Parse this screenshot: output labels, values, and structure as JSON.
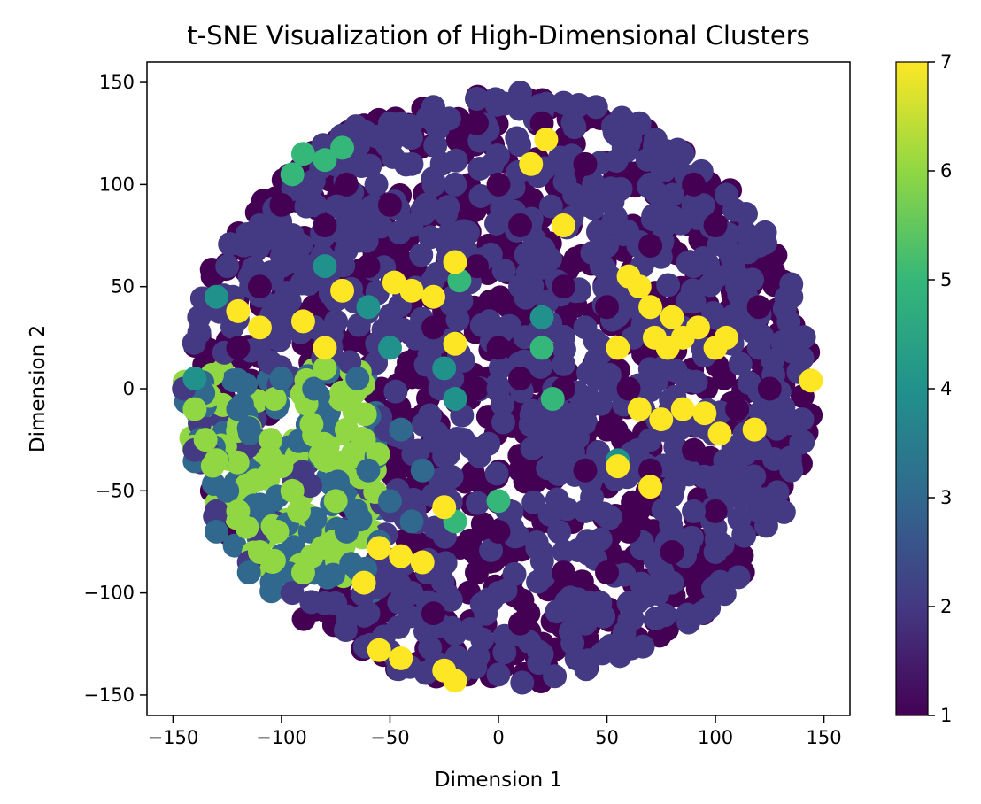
{
  "chart_data": {
    "type": "scatter",
    "title": "t-SNE Visualization of High-Dimensional Clusters",
    "xlabel": "Dimension 1",
    "ylabel": "Dimension 2",
    "xlim": [
      -162,
      162
    ],
    "ylim": [
      -160,
      160
    ],
    "xticks": [
      -150,
      -100,
      -50,
      0,
      50,
      100,
      150
    ],
    "xtick_labels": [
      "−150",
      "−100",
      "−50",
      "0",
      "50",
      "100",
      "150"
    ],
    "yticks": [
      -150,
      -100,
      -50,
      0,
      50,
      100,
      150
    ],
    "ytick_labels": [
      "−150",
      "−100",
      "−50",
      "0",
      "50",
      "100",
      "150"
    ],
    "colormap": "viridis",
    "colorbar": {
      "range": [
        1,
        7
      ],
      "ticks": [
        1,
        2,
        3,
        4,
        5,
        6,
        7
      ],
      "tick_labels": [
        "1",
        "2",
        "3",
        "4",
        "5",
        "6",
        "7"
      ]
    },
    "grid": false,
    "legend": "none",
    "marker_radius_data_units": 5.5,
    "points": [
      {
        "x": 0,
        "y": 0,
        "c": 2
      },
      {
        "x": 10,
        "y": 5,
        "c": 1
      },
      {
        "x": -92,
        "y": -60,
        "c": 6
      },
      {
        "x": -102,
        "y": -70,
        "c": 6
      },
      {
        "x": -86,
        "y": -82,
        "c": 6
      },
      {
        "x": -112,
        "y": -45,
        "c": 6
      },
      {
        "x": -80,
        "y": -35,
        "c": 6
      },
      {
        "x": -70,
        "y": -20,
        "c": 6
      },
      {
        "x": -120,
        "y": -60,
        "c": 6
      },
      {
        "x": -135,
        "y": -25,
        "c": 6
      },
      {
        "x": -130,
        "y": -35,
        "c": 6
      },
      {
        "x": -95,
        "y": -50,
        "c": 6
      },
      {
        "x": -75,
        "y": -55,
        "c": 6
      },
      {
        "x": -105,
        "y": -25,
        "c": 6
      },
      {
        "x": -80,
        "y": 10,
        "c": 6
      },
      {
        "x": -62,
        "y": -25,
        "c": 6
      },
      {
        "x": -90,
        "y": -90,
        "c": 6
      },
      {
        "x": -110,
        "y": -80,
        "c": 6
      },
      {
        "x": -140,
        "y": -10,
        "c": 6
      },
      {
        "x": -100,
        "y": -38,
        "c": 6
      },
      {
        "x": -125,
        "y": -50,
        "c": 3
      },
      {
        "x": -115,
        "y": -90,
        "c": 3
      },
      {
        "x": -130,
        "y": -70,
        "c": 3
      },
      {
        "x": -60,
        "y": -40,
        "c": 3
      },
      {
        "x": -45,
        "y": -20,
        "c": 3
      },
      {
        "x": -50,
        "y": -55,
        "c": 3
      },
      {
        "x": -35,
        "y": -40,
        "c": 3
      },
      {
        "x": -70,
        "y": -70,
        "c": 3
      },
      {
        "x": -85,
        "y": 0,
        "c": 3
      },
      {
        "x": -100,
        "y": 5,
        "c": 3
      },
      {
        "x": -65,
        "y": 5,
        "c": 3
      },
      {
        "x": -55,
        "y": -75,
        "c": 3
      },
      {
        "x": -120,
        "y": -10,
        "c": 3
      },
      {
        "x": -40,
        "y": -65,
        "c": 3
      },
      {
        "x": -80,
        "y": 112,
        "c": 5
      },
      {
        "x": -90,
        "y": 115,
        "c": 5
      },
      {
        "x": -72,
        "y": 118,
        "c": 5
      },
      {
        "x": -95,
        "y": 105,
        "c": 5
      },
      {
        "x": -18,
        "y": 53,
        "c": 5
      },
      {
        "x": 20,
        "y": 20,
        "c": 5
      },
      {
        "x": 25,
        "y": -5,
        "c": 5
      },
      {
        "x": -20,
        "y": -65,
        "c": 5
      },
      {
        "x": 0,
        "y": -55,
        "c": 5
      },
      {
        "x": -130,
        "y": 45,
        "c": 4
      },
      {
        "x": -140,
        "y": 5,
        "c": 4
      },
      {
        "x": -50,
        "y": 20,
        "c": 4
      },
      {
        "x": -20,
        "y": -5,
        "c": 4
      },
      {
        "x": 20,
        "y": 35,
        "c": 4
      },
      {
        "x": -25,
        "y": 10,
        "c": 4
      },
      {
        "x": -80,
        "y": 60,
        "c": 4
      },
      {
        "x": -60,
        "y": 40,
        "c": 4
      },
      {
        "x": 55,
        "y": -35,
        "c": 4
      },
      {
        "x": -120,
        "y": 38,
        "c": 7
      },
      {
        "x": -110,
        "y": 30,
        "c": 7
      },
      {
        "x": -90,
        "y": 33,
        "c": 7
      },
      {
        "x": -80,
        "y": 20,
        "c": 7
      },
      {
        "x": -72,
        "y": 48,
        "c": 7
      },
      {
        "x": -48,
        "y": 52,
        "c": 7
      },
      {
        "x": -40,
        "y": 48,
        "c": 7
      },
      {
        "x": -30,
        "y": 45,
        "c": 7
      },
      {
        "x": -20,
        "y": 62,
        "c": 7
      },
      {
        "x": -20,
        "y": 22,
        "c": 7
      },
      {
        "x": 15,
        "y": 110,
        "c": 7
      },
      {
        "x": 30,
        "y": 80,
        "c": 7
      },
      {
        "x": 60,
        "y": 55,
        "c": 7
      },
      {
        "x": 65,
        "y": 50,
        "c": 7
      },
      {
        "x": 55,
        "y": 20,
        "c": 7
      },
      {
        "x": 72,
        "y": 25,
        "c": 7
      },
      {
        "x": 80,
        "y": 35,
        "c": 7
      },
      {
        "x": 85,
        "y": 25,
        "c": 7
      },
      {
        "x": 92,
        "y": 30,
        "c": 7
      },
      {
        "x": 100,
        "y": 20,
        "c": 7
      },
      {
        "x": 105,
        "y": 25,
        "c": 7
      },
      {
        "x": 78,
        "y": 20,
        "c": 7
      },
      {
        "x": 70,
        "y": 40,
        "c": 7
      },
      {
        "x": 65,
        "y": -10,
        "c": 7
      },
      {
        "x": 75,
        "y": -15,
        "c": 7
      },
      {
        "x": 85,
        "y": -10,
        "c": 7
      },
      {
        "x": 95,
        "y": -12,
        "c": 7
      },
      {
        "x": 102,
        "y": -22,
        "c": 7
      },
      {
        "x": 118,
        "y": -20,
        "c": 7
      },
      {
        "x": 144,
        "y": 4,
        "c": 7
      },
      {
        "x": 55,
        "y": -38,
        "c": 7
      },
      {
        "x": 70,
        "y": -48,
        "c": 7
      },
      {
        "x": -55,
        "y": -78,
        "c": 7
      },
      {
        "x": -45,
        "y": -82,
        "c": 7
      },
      {
        "x": -35,
        "y": -85,
        "c": 7
      },
      {
        "x": -25,
        "y": -58,
        "c": 7
      },
      {
        "x": -55,
        "y": -128,
        "c": 7
      },
      {
        "x": -45,
        "y": -132,
        "c": 7
      },
      {
        "x": -25,
        "y": -138,
        "c": 7
      },
      {
        "x": -20,
        "y": -143,
        "c": 7
      },
      {
        "x": -62,
        "y": -95,
        "c": 7
      },
      {
        "x": 22,
        "y": 122,
        "c": 7
      },
      {
        "x": -80,
        "y": -105,
        "c": 2
      },
      {
        "x": -60,
        "y": -110,
        "c": 2
      },
      {
        "x": -40,
        "y": -100,
        "c": 2
      },
      {
        "x": -20,
        "y": -120,
        "c": 2
      },
      {
        "x": 0,
        "y": -140,
        "c": 2
      },
      {
        "x": 20,
        "y": -130,
        "c": 2
      },
      {
        "x": 40,
        "y": -115,
        "c": 2
      },
      {
        "x": 60,
        "y": -105,
        "c": 2
      },
      {
        "x": 80,
        "y": -95,
        "c": 2
      },
      {
        "x": 100,
        "y": -80,
        "c": 2
      },
      {
        "x": 120,
        "y": -60,
        "c": 2
      },
      {
        "x": 135,
        "y": -40,
        "c": 2
      },
      {
        "x": 140,
        "y": -15,
        "c": 2
      },
      {
        "x": 140,
        "y": 15,
        "c": 2
      },
      {
        "x": 135,
        "y": 45,
        "c": 2
      },
      {
        "x": 120,
        "y": 70,
        "c": 2
      },
      {
        "x": 105,
        "y": 95,
        "c": 2
      },
      {
        "x": 85,
        "y": 115,
        "c": 2
      },
      {
        "x": 65,
        "y": 130,
        "c": 2
      },
      {
        "x": 45,
        "y": 138,
        "c": 2
      },
      {
        "x": 30,
        "y": 140,
        "c": 2
      },
      {
        "x": 10,
        "y": 145,
        "c": 2
      },
      {
        "x": -10,
        "y": 142,
        "c": 2
      },
      {
        "x": -30,
        "y": 138,
        "c": 2
      },
      {
        "x": -50,
        "y": 130,
        "c": 2
      },
      {
        "x": -70,
        "y": 120,
        "c": 2
      },
      {
        "x": -90,
        "y": 100,
        "c": 2
      },
      {
        "x": -110,
        "y": 80,
        "c": 2
      },
      {
        "x": -125,
        "y": 60,
        "c": 2
      },
      {
        "x": -138,
        "y": 35,
        "c": 2
      },
      {
        "x": -145,
        "y": 0,
        "c": 2
      },
      {
        "x": -140,
        "y": -30,
        "c": 2
      },
      {
        "x": -130,
        "y": -60,
        "c": 2
      },
      {
        "x": -115,
        "y": -85,
        "c": 2
      },
      {
        "x": -95,
        "y": -100,
        "c": 2
      },
      {
        "x": 60,
        "y": 120,
        "c": 2
      },
      {
        "x": 80,
        "y": 110,
        "c": 2
      },
      {
        "x": 70,
        "y": 100,
        "c": 2
      },
      {
        "x": -40,
        "y": 110,
        "c": 2
      },
      {
        "x": -20,
        "y": 100,
        "c": 2
      },
      {
        "x": 40,
        "y": 90,
        "c": 2
      },
      {
        "x": -60,
        "y": 80,
        "c": 2
      },
      {
        "x": -100,
        "y": 60,
        "c": 2
      },
      {
        "x": 110,
        "y": 50,
        "c": 2
      },
      {
        "x": 120,
        "y": 20,
        "c": 2
      },
      {
        "x": 20,
        "y": -80,
        "c": 2
      },
      {
        "x": 40,
        "y": -60,
        "c": 2
      },
      {
        "x": 0,
        "y": -100,
        "c": 2
      },
      {
        "x": -10,
        "y": -30,
        "c": 2
      },
      {
        "x": 10,
        "y": 50,
        "c": 2
      },
      {
        "x": 40,
        "y": 30,
        "c": 2
      },
      {
        "x": -40,
        "y": 80,
        "c": 2
      },
      {
        "x": 90,
        "y": 60,
        "c": 2
      },
      {
        "x": 110,
        "y": -40,
        "c": 2
      },
      {
        "x": 90,
        "y": -60,
        "c": 2
      },
      {
        "x": 30,
        "y": -20,
        "c": 2
      },
      {
        "x": 50,
        "y": 70,
        "c": 2
      },
      {
        "x": -10,
        "y": 130,
        "c": 1
      },
      {
        "x": 20,
        "y": 130,
        "c": 1
      },
      {
        "x": 40,
        "y": 110,
        "c": 1
      },
      {
        "x": 10,
        "y": 80,
        "c": 1
      },
      {
        "x": -10,
        "y": 60,
        "c": 1
      },
      {
        "x": 30,
        "y": 50,
        "c": 1
      },
      {
        "x": 50,
        "y": 40,
        "c": 1
      },
      {
        "x": 0,
        "y": 20,
        "c": 1
      },
      {
        "x": 30,
        "y": 0,
        "c": 1
      },
      {
        "x": 50,
        "y": -20,
        "c": 1
      },
      {
        "x": 70,
        "y": -40,
        "c": 1
      },
      {
        "x": 90,
        "y": -30,
        "c": 1
      },
      {
        "x": 110,
        "y": -10,
        "c": 1
      },
      {
        "x": 125,
        "y": 0,
        "c": 1
      },
      {
        "x": 100,
        "y": 80,
        "c": 1
      },
      {
        "x": 120,
        "y": 40,
        "c": 1
      },
      {
        "x": -50,
        "y": 90,
        "c": 1
      },
      {
        "x": -80,
        "y": 80,
        "c": 1
      },
      {
        "x": -100,
        "y": 90,
        "c": 1
      },
      {
        "x": -120,
        "y": 20,
        "c": 1
      },
      {
        "x": -60,
        "y": 60,
        "c": 1
      },
      {
        "x": -30,
        "y": 30,
        "c": 1
      },
      {
        "x": -10,
        "y": 0,
        "c": 1
      },
      {
        "x": 0,
        "y": -70,
        "c": 1
      },
      {
        "x": 30,
        "y": -90,
        "c": 1
      },
      {
        "x": 50,
        "y": -90,
        "c": 1
      },
      {
        "x": 80,
        "y": -80,
        "c": 1
      },
      {
        "x": 60,
        "y": -70,
        "c": 1
      },
      {
        "x": 100,
        "y": -60,
        "c": 1
      },
      {
        "x": 10,
        "y": -115,
        "c": 1
      },
      {
        "x": -10,
        "y": -90,
        "c": 1
      },
      {
        "x": -30,
        "y": -110,
        "c": 1
      },
      {
        "x": 70,
        "y": 70,
        "c": 1
      },
      {
        "x": -70,
        "y": 100,
        "c": 1
      },
      {
        "x": -110,
        "y": 50,
        "c": 1
      },
      {
        "x": 60,
        "y": 0,
        "c": 1
      },
      {
        "x": 40,
        "y": -40,
        "c": 1
      },
      {
        "x": 10,
        "y": -40,
        "c": 1
      },
      {
        "x": 90,
        "y": 100,
        "c": 1
      },
      {
        "x": 0,
        "y": 100,
        "c": 1
      }
    ]
  }
}
